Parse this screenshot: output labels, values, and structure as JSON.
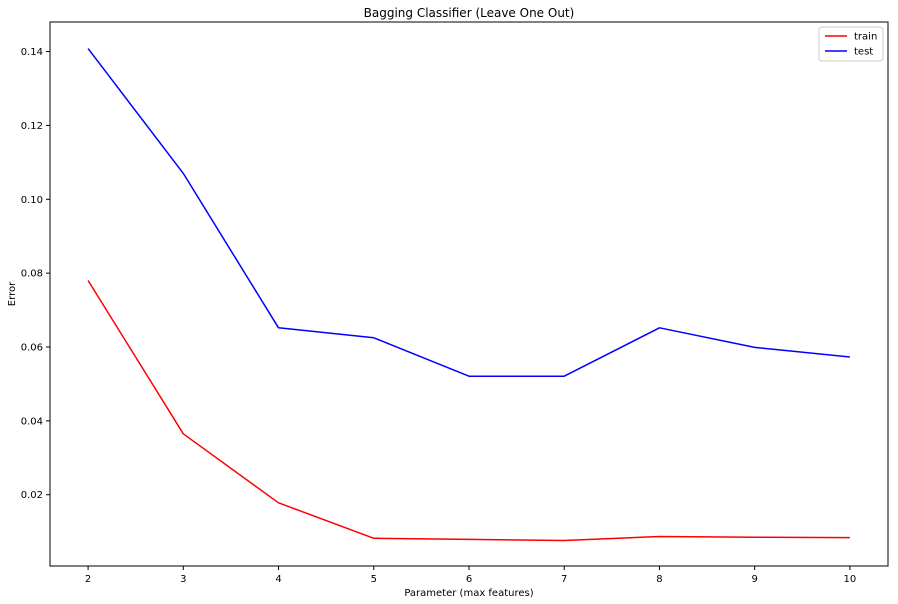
{
  "chart_data": {
    "type": "line",
    "title": "Bagging Classifier (Leave One Out)",
    "xlabel": "Parameter (max features)",
    "ylabel": "Error",
    "x": [
      2,
      3,
      4,
      5,
      6,
      7,
      8,
      9,
      10
    ],
    "xticks": [
      2,
      3,
      4,
      5,
      6,
      7,
      8,
      9,
      10
    ],
    "yticks": [
      0.02,
      0.04,
      0.06,
      0.08,
      0.1,
      0.12,
      0.14
    ],
    "ytick_labels": [
      "0.02",
      "0.04",
      "0.06",
      "0.08",
      "0.10",
      "0.12",
      "0.14"
    ],
    "xlim": [
      1.6,
      10.4
    ],
    "ylim": [
      0.0007,
      0.148
    ],
    "grid": false,
    "legend": "top-right",
    "series": [
      {
        "name": "train",
        "color": "#ff0000",
        "values": [
          0.078,
          0.0365,
          0.0178,
          0.0082,
          0.0079,
          0.0076,
          0.0087,
          0.0085,
          0.0084
        ]
      },
      {
        "name": "test",
        "color": "#0000ff",
        "values": [
          0.1408,
          0.107,
          0.0652,
          0.0625,
          0.0521,
          0.0521,
          0.0652,
          0.0599,
          0.0573
        ]
      }
    ]
  }
}
